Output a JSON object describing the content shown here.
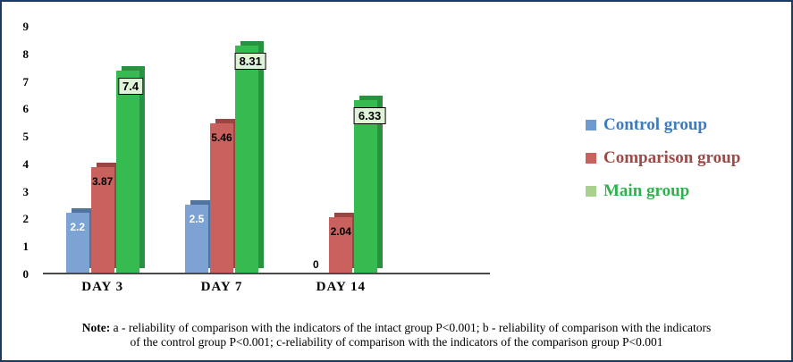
{
  "chart_data": {
    "type": "bar",
    "title": "",
    "categories": [
      "DAY 3",
      "DAY 7",
      "DAY 14"
    ],
    "series": [
      {
        "key": "control",
        "name": "Control group",
        "values": [
          2.2,
          2.5,
          0
        ],
        "labels": [
          "2.2",
          "2.5",
          "0"
        ],
        "color": "#7CA3D4",
        "shadow_color": "#50749E",
        "label_color": "#ffffff",
        "boxed": false
      },
      {
        "key": "comparison",
        "name": "Comparison group",
        "values": [
          3.87,
          5.46,
          2.04
        ],
        "labels": [
          "3.87",
          "5.46",
          "2.04"
        ],
        "color": "#C9625E",
        "shadow_color": "#9A4542",
        "label_color": "#000000",
        "boxed": false
      },
      {
        "key": "main",
        "name": "Main group",
        "values": [
          7.4,
          8.31,
          6.33
        ],
        "labels": [
          "7.4",
          "8.31",
          "6.33"
        ],
        "color": "#35BB50",
        "shadow_color": "#27933E",
        "label_color": "#000000",
        "boxed": true
      }
    ],
    "ylim": [
      0,
      9
    ],
    "yticks": [
      0,
      1,
      2,
      3,
      4,
      5,
      6,
      7,
      8,
      9
    ],
    "grid": false,
    "legend_position": "right"
  },
  "legend": {
    "items": [
      {
        "label": "Control group",
        "marker_color": "#6F9AD0",
        "text_color": "#3D7BBE"
      },
      {
        "label": "Comparison group",
        "marker_color": "#C9625E",
        "text_color": "#9C4A47"
      },
      {
        "label": "Main group",
        "marker_color": "#A9D18E",
        "text_color": "#2FB24C"
      }
    ]
  },
  "note": {
    "prefix": "Note:",
    "line1": "a - reliability of comparison with the indicators of the intact group P<0.001; b - reliability of comparison with the indicators",
    "line2": "of the control group P<0.001; c-reliability of comparison with the indicators of the comparison group P<0.001"
  }
}
